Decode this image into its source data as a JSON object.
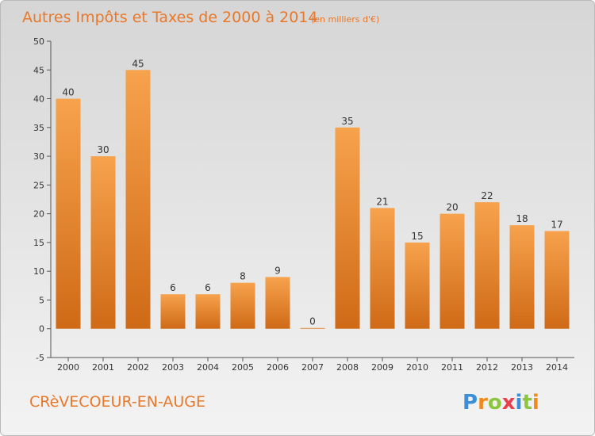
{
  "chart_data": {
    "type": "bar",
    "title": "Autres Impôts et Taxes de 2000 à 2014",
    "subtitle": "(en milliers d'€)",
    "categories": [
      "2000",
      "2001",
      "2002",
      "2003",
      "2004",
      "2005",
      "2006",
      "2007",
      "2008",
      "2009",
      "2010",
      "2011",
      "2012",
      "2013",
      "2014"
    ],
    "values": [
      40,
      30,
      45,
      6,
      6,
      8,
      9,
      0,
      35,
      21,
      15,
      20,
      22,
      18,
      17
    ],
    "ylim": [
      -5,
      50
    ],
    "yticks": [
      -5,
      0,
      5,
      10,
      15,
      20,
      25,
      30,
      35,
      40,
      45,
      50
    ],
    "xlabel": "",
    "ylabel": "",
    "grid": false,
    "bar_color": "#f0913a"
  },
  "footer": {
    "commune": "CRèVECOEUR-EN-AUGE",
    "brand_letters": [
      {
        "ch": "P",
        "color": "#3a8fd8"
      },
      {
        "ch": "r",
        "color": "#f08a1c"
      },
      {
        "ch": "o",
        "color": "#8cc63f"
      },
      {
        "ch": "x",
        "color": "#e8404a"
      },
      {
        "ch": "i",
        "color": "#3a8fd8"
      },
      {
        "ch": "t",
        "color": "#8cc63f"
      },
      {
        "ch": "i",
        "color": "#f08a1c"
      }
    ]
  }
}
